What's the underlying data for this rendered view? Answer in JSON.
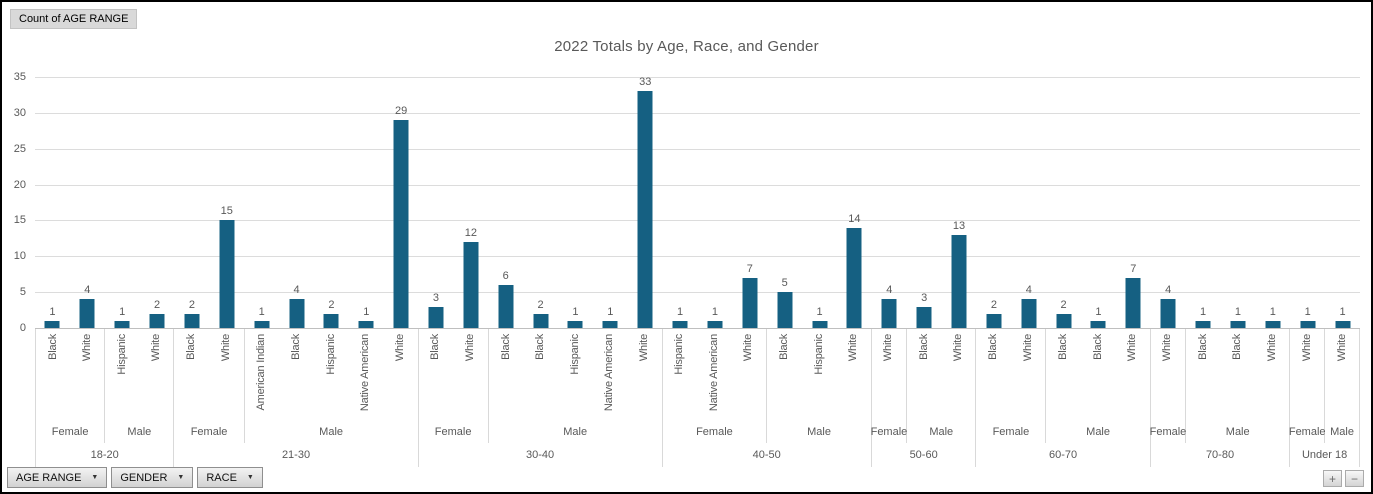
{
  "pivot": {
    "value_button_label": "Count of AGE RANGE",
    "field_buttons": [
      {
        "label": "AGE RANGE"
      },
      {
        "label": "GENDER"
      },
      {
        "label": "RACE"
      }
    ],
    "expand_label": "+",
    "collapse_label": "−"
  },
  "chart_data": {
    "type": "bar",
    "title": "2022 Totals by Age, Race, and Gender",
    "value_axis": {
      "min": 0,
      "max": 35,
      "interval": 5,
      "ticks": [
        0,
        5,
        10,
        15,
        20,
        25,
        30,
        35
      ]
    },
    "grid": "horizontal",
    "legend": "none",
    "data_labels": "above-bars",
    "axis_hierarchy": [
      "RACE",
      "GENDER",
      "AGE RANGE"
    ],
    "colors": {
      "bar": "#156082",
      "text": "#595959",
      "gridline": "#DCDCDC",
      "axis_line": "#BFBFBF",
      "separator": "#D9D9D9"
    },
    "groups": [
      {
        "age": "18-20",
        "genders": [
          {
            "gender": "Female",
            "bars": [
              {
                "race": "Black",
                "value": 1
              },
              {
                "race": "White",
                "value": 4
              }
            ]
          },
          {
            "gender": "Male",
            "bars": [
              {
                "race": "Hispanic",
                "value": 1
              },
              {
                "race": "White",
                "value": 2
              }
            ]
          }
        ]
      },
      {
        "age": "21-30",
        "genders": [
          {
            "gender": "Female",
            "bars": [
              {
                "race": "Black",
                "value": 2
              },
              {
                "race": "White",
                "value": 15
              }
            ]
          },
          {
            "gender": "Male",
            "bars": [
              {
                "race": "American Indian",
                "value": 1
              },
              {
                "race": "Black",
                "value": 4
              },
              {
                "race": "Hispanic",
                "value": 2
              },
              {
                "race": "Native American",
                "value": 1
              },
              {
                "race": "White",
                "value": 29
              }
            ]
          }
        ]
      },
      {
        "age": "30-40",
        "genders": [
          {
            "gender": "Female",
            "bars": [
              {
                "race": "Black",
                "value": 3
              },
              {
                "race": "White",
                "value": 12
              }
            ]
          },
          {
            "gender": "Male",
            "bars": [
              {
                "race": "Black",
                "value": 6
              },
              {
                "race": "Black",
                "value": 2
              },
              {
                "race": "Hispanic",
                "value": 1
              },
              {
                "race": "Native American",
                "value": 1
              },
              {
                "race": "White",
                "value": 33
              }
            ]
          }
        ]
      },
      {
        "age": "40-50",
        "genders": [
          {
            "gender": "Female",
            "bars": [
              {
                "race": "Hispanic",
                "value": 1
              },
              {
                "race": "Native American",
                "value": 1
              },
              {
                "race": "White",
                "value": 7
              }
            ]
          },
          {
            "gender": "Male",
            "bars": [
              {
                "race": "Black",
                "value": 5
              },
              {
                "race": "Hispanic",
                "value": 1
              },
              {
                "race": "White",
                "value": 14
              }
            ]
          }
        ]
      },
      {
        "age": "50-60",
        "genders": [
          {
            "gender": "Female",
            "bars": [
              {
                "race": "White",
                "value": 4
              }
            ]
          },
          {
            "gender": "Male",
            "bars": [
              {
                "race": "Black",
                "value": 3
              },
              {
                "race": "White",
                "value": 13
              }
            ]
          }
        ]
      },
      {
        "age": "60-70",
        "genders": [
          {
            "gender": "Female",
            "bars": [
              {
                "race": "Black",
                "value": 2
              },
              {
                "race": "White",
                "value": 4
              }
            ]
          },
          {
            "gender": "Male",
            "bars": [
              {
                "race": "Black",
                "value": 2
              },
              {
                "race": "Black",
                "value": 1
              },
              {
                "race": "White",
                "value": 7
              }
            ]
          }
        ]
      },
      {
        "age": "70-80",
        "genders": [
          {
            "gender": "Female",
            "bars": [
              {
                "race": "White",
                "value": 4
              }
            ]
          },
          {
            "gender": "Male",
            "bars": [
              {
                "race": "Black",
                "value": 1
              },
              {
                "race": "Black",
                "value": 1
              },
              {
                "race": "White",
                "value": 1
              }
            ]
          }
        ]
      },
      {
        "age": "Under 18",
        "genders": [
          {
            "gender": "Female",
            "bars": [
              {
                "race": "White",
                "value": 1
              }
            ]
          },
          {
            "gender": "Male",
            "bars": [
              {
                "race": "White",
                "value": 1
              }
            ]
          }
        ]
      }
    ]
  }
}
